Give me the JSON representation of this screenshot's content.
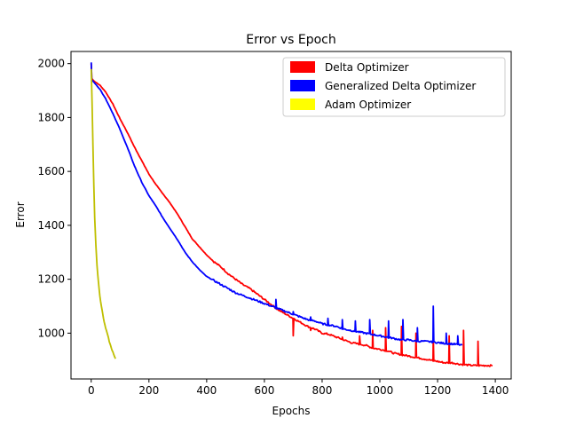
{
  "chart_data": {
    "type": "line",
    "title": "Error vs Epoch",
    "xlabel": "Epochs",
    "ylabel": "Error",
    "xlim": [
      -70,
      1455
    ],
    "ylim": [
      830,
      2045
    ],
    "xticks": [
      0,
      200,
      400,
      600,
      800,
      1000,
      1200,
      1400
    ],
    "yticks": [
      1000,
      1200,
      1400,
      1600,
      1800,
      2000
    ],
    "grid": false,
    "legend_position": "top-right",
    "series": [
      {
        "name": "Delta Optimizer",
        "color": "#ff0000",
        "points": [
          [
            0,
            2000
          ],
          [
            2,
            1945
          ],
          [
            10,
            1935
          ],
          [
            30,
            1920
          ],
          [
            50,
            1895
          ],
          [
            75,
            1850
          ],
          [
            100,
            1795
          ],
          [
            125,
            1745
          ],
          [
            150,
            1690
          ],
          [
            175,
            1640
          ],
          [
            200,
            1590
          ],
          [
            225,
            1550
          ],
          [
            250,
            1515
          ],
          [
            275,
            1480
          ],
          [
            300,
            1440
          ],
          [
            325,
            1395
          ],
          [
            350,
            1350
          ],
          [
            375,
            1320
          ],
          [
            400,
            1290
          ],
          [
            425,
            1265
          ],
          [
            450,
            1245
          ],
          [
            475,
            1220
          ],
          [
            500,
            1200
          ],
          [
            525,
            1180
          ],
          [
            550,
            1165
          ],
          [
            575,
            1145
          ],
          [
            600,
            1125
          ],
          [
            625,
            1105
          ],
          [
            650,
            1085
          ],
          [
            675,
            1070
          ],
          [
            700,
            1055
          ],
          [
            725,
            1040
          ],
          [
            750,
            1025
          ],
          [
            775,
            1015
          ],
          [
            800,
            1000
          ],
          [
            825,
            995
          ],
          [
            850,
            985
          ],
          [
            875,
            975
          ],
          [
            900,
            965
          ],
          [
            925,
            960
          ],
          [
            950,
            955
          ],
          [
            975,
            945
          ],
          [
            1000,
            940
          ],
          [
            1025,
            935
          ],
          [
            1050,
            925
          ],
          [
            1075,
            920
          ],
          [
            1100,
            915
          ],
          [
            1125,
            910
          ],
          [
            1150,
            905
          ],
          [
            1175,
            900
          ],
          [
            1200,
            895
          ],
          [
            1225,
            890
          ],
          [
            1250,
            890
          ],
          [
            1275,
            885
          ],
          [
            1300,
            882
          ],
          [
            1325,
            880
          ],
          [
            1350,
            880
          ],
          [
            1375,
            880
          ],
          [
            1390,
            879
          ]
        ],
        "spikes": [
          [
            700,
            990
          ],
          [
            760,
            1010
          ],
          [
            815,
            1000
          ],
          [
            870,
            985
          ],
          [
            930,
            990
          ],
          [
            975,
            1010
          ],
          [
            1020,
            1020
          ],
          [
            1075,
            1025
          ],
          [
            1125,
            1000
          ],
          [
            1185,
            990
          ],
          [
            1240,
            990
          ],
          [
            1290,
            1010
          ],
          [
            1340,
            970
          ]
        ]
      },
      {
        "name": "Generalized Delta Optimizer",
        "color": "#0000ff",
        "points": [
          [
            0,
            2005
          ],
          [
            2,
            1940
          ],
          [
            10,
            1930
          ],
          [
            30,
            1905
          ],
          [
            50,
            1870
          ],
          [
            75,
            1815
          ],
          [
            100,
            1755
          ],
          [
            125,
            1690
          ],
          [
            150,
            1620
          ],
          [
            175,
            1560
          ],
          [
            200,
            1510
          ],
          [
            225,
            1470
          ],
          [
            250,
            1425
          ],
          [
            275,
            1385
          ],
          [
            300,
            1345
          ],
          [
            325,
            1300
          ],
          [
            350,
            1265
          ],
          [
            375,
            1235
          ],
          [
            400,
            1210
          ],
          [
            425,
            1195
          ],
          [
            450,
            1180
          ],
          [
            475,
            1165
          ],
          [
            500,
            1150
          ],
          [
            525,
            1140
          ],
          [
            550,
            1130
          ],
          [
            575,
            1120
          ],
          [
            600,
            1110
          ],
          [
            625,
            1100
          ],
          [
            650,
            1090
          ],
          [
            675,
            1080
          ],
          [
            700,
            1070
          ],
          [
            725,
            1060
          ],
          [
            750,
            1050
          ],
          [
            775,
            1045
          ],
          [
            800,
            1035
          ],
          [
            825,
            1030
          ],
          [
            850,
            1025
          ],
          [
            875,
            1015
          ],
          [
            900,
            1010
          ],
          [
            925,
            1005
          ],
          [
            950,
            1000
          ],
          [
            975,
            995
          ],
          [
            1000,
            990
          ],
          [
            1025,
            985
          ],
          [
            1050,
            980
          ],
          [
            1075,
            975
          ],
          [
            1100,
            975
          ],
          [
            1125,
            970
          ],
          [
            1150,
            970
          ],
          [
            1175,
            968
          ],
          [
            1200,
            965
          ],
          [
            1225,
            962
          ],
          [
            1250,
            960
          ],
          [
            1270,
            958
          ],
          [
            1285,
            955
          ]
        ],
        "spikes": [
          [
            640,
            1125
          ],
          [
            700,
            1080
          ],
          [
            760,
            1060
          ],
          [
            820,
            1055
          ],
          [
            870,
            1050
          ],
          [
            915,
            1045
          ],
          [
            965,
            1050
          ],
          [
            1030,
            1045
          ],
          [
            1080,
            1050
          ],
          [
            1130,
            1020
          ],
          [
            1185,
            1100
          ],
          [
            1230,
            1000
          ],
          [
            1270,
            990
          ]
        ]
      },
      {
        "name": "Adam Optimizer",
        "color": "#ffff00",
        "line_color": "#bfbf00",
        "points": [
          [
            0,
            1980
          ],
          [
            3,
            1860
          ],
          [
            6,
            1700
          ],
          [
            9,
            1550
          ],
          [
            12,
            1430
          ],
          [
            16,
            1330
          ],
          [
            20,
            1250
          ],
          [
            25,
            1190
          ],
          [
            30,
            1140
          ],
          [
            35,
            1100
          ],
          [
            40,
            1070
          ],
          [
            45,
            1040
          ],
          [
            50,
            1020
          ],
          [
            55,
            1000
          ],
          [
            60,
            980
          ],
          [
            65,
            960
          ],
          [
            70,
            945
          ],
          [
            75,
            930
          ],
          [
            80,
            915
          ],
          [
            84,
            905
          ]
        ]
      }
    ]
  }
}
